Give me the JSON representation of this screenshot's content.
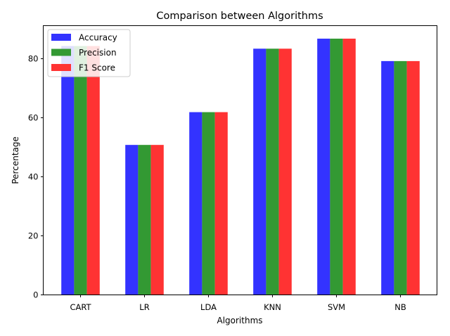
{
  "chart_data": {
    "type": "bar",
    "title": "Comparison between Algorithms",
    "xlabel": "Algorithms",
    "ylabel": "Percentage",
    "categories": [
      "CART",
      "LR",
      "LDA",
      "KNN",
      "SVM",
      "NB"
    ],
    "series": [
      {
        "name": "Accuracy",
        "color": "#3333ff",
        "values": [
          84.3,
          50.8,
          61.9,
          83.4,
          86.8,
          79.2
        ]
      },
      {
        "name": "Precision",
        "color": "#339933",
        "values": [
          84.3,
          50.8,
          61.9,
          83.4,
          86.8,
          79.2
        ]
      },
      {
        "name": "F1 Score",
        "color": "#ff3333",
        "values": [
          84.3,
          50.8,
          61.9,
          83.4,
          86.8,
          79.2
        ]
      }
    ],
    "ylim": [
      0,
      91.2
    ],
    "yticks": [
      0,
      20,
      40,
      60,
      80
    ],
    "grid": false,
    "legend": "top-left"
  }
}
